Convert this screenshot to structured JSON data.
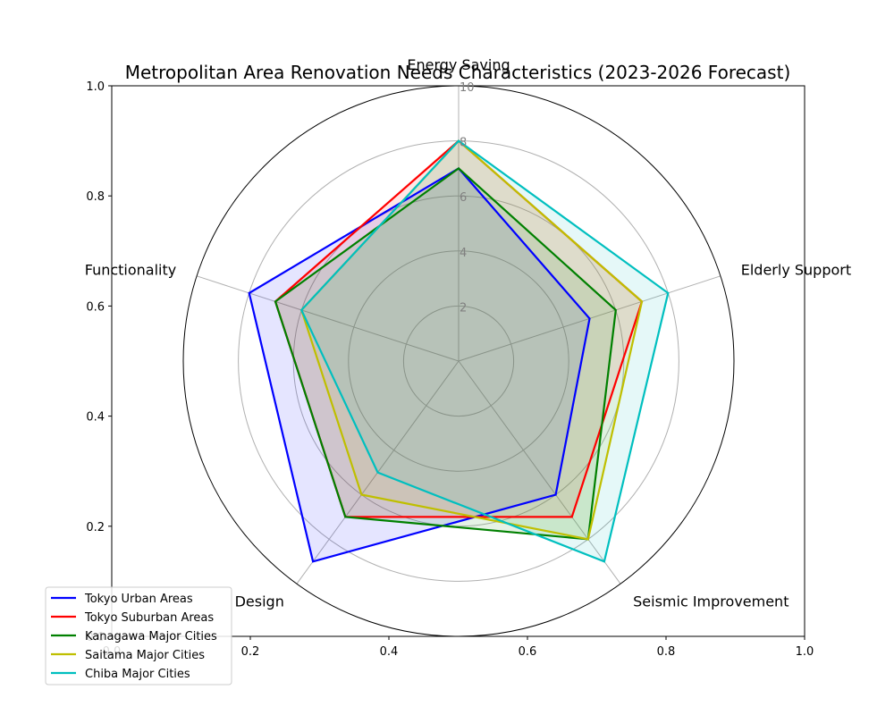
{
  "chart_data": {
    "type": "radar",
    "title": "Metropolitan Area Renovation Needs Characteristics (2023-2026 Forecast)",
    "categories": [
      "Energy Saving",
      "Elderly Support",
      "Seismic Improvement",
      "Design",
      "Functionality"
    ],
    "r_ticks": [
      "2",
      "4",
      "6",
      "8",
      "10"
    ],
    "r_max": 10,
    "cartesian_x_ticks": [
      "0.0",
      "0.2",
      "0.4",
      "0.6",
      "0.8",
      "1.0"
    ],
    "cartesian_y_ticks": [
      "0.0",
      "0.2",
      "0.4",
      "0.6",
      "0.8",
      "1.0"
    ],
    "legend_position": "lower-left",
    "series": [
      {
        "name": "Tokyo Urban Areas",
        "color": "#0000ff",
        "values": [
          7,
          5,
          6,
          9,
          8
        ]
      },
      {
        "name": "Tokyo Suburban Areas",
        "color": "#ff0000",
        "values": [
          8,
          7,
          7,
          7,
          7
        ]
      },
      {
        "name": "Kanagawa Major Cities",
        "color": "#008000",
        "values": [
          7,
          6,
          8,
          7,
          7
        ]
      },
      {
        "name": "Saitama Major Cities",
        "color": "#bfbf00",
        "values": [
          8,
          7,
          8,
          6,
          6
        ]
      },
      {
        "name": "Chiba Major Cities",
        "color": "#00bfbf",
        "values": [
          8,
          8,
          9,
          5,
          6
        ]
      }
    ]
  }
}
